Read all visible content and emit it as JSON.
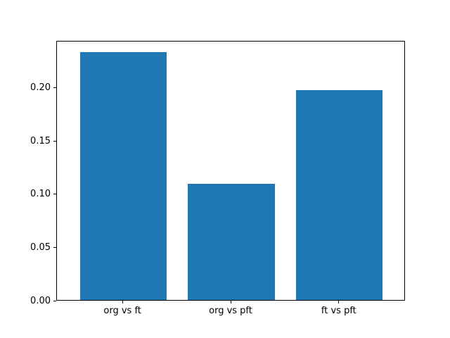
{
  "chart_data": {
    "type": "bar",
    "title": "",
    "xlabel": "",
    "ylabel": "",
    "categories": [
      "org vs ft",
      "org vs pft",
      "ft vs pft"
    ],
    "values": [
      0.233,
      0.109,
      0.197
    ],
    "ylim": [
      0,
      0.244
    ],
    "yticks": [
      {
        "value": 0.0,
        "label": "0.00"
      },
      {
        "value": 0.05,
        "label": "0.05"
      },
      {
        "value": 0.1,
        "label": "0.10"
      },
      {
        "value": 0.15,
        "label": "0.15"
      },
      {
        "value": 0.2,
        "label": "0.20"
      }
    ],
    "grid": false,
    "legend": null,
    "bar_color": "#1f77b4",
    "bar_width_fraction": 0.8
  },
  "colors": {
    "background": "#ffffff",
    "spine": "#000000",
    "text": "#000000",
    "bar": "#1f77b4"
  }
}
